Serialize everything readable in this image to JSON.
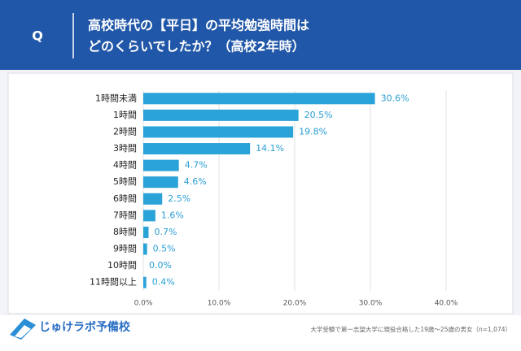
{
  "header": {
    "label": "Q",
    "title_lines": [
      "高校時代の【平日】の平均勉強時間は",
      "どのくらいでしたか？（高校2年時）"
    ]
  },
  "chart_data": {
    "type": "bar",
    "orientation": "horizontal",
    "color": "#2aa3d9",
    "categories": [
      "1時間未満",
      "1時間",
      "2時間",
      "3時間",
      "4時間",
      "5時間",
      "6時間",
      "7時間",
      "8時間",
      "9時間",
      "10時間",
      "11時間以上"
    ],
    "values": [
      30.6,
      20.5,
      19.8,
      14.1,
      4.7,
      4.6,
      2.5,
      1.6,
      0.7,
      0.5,
      0.0,
      0.4
    ],
    "value_labels": [
      "30.6%",
      "20.5%",
      "19.8%",
      "14.1%",
      "4.7%",
      "4.6%",
      "2.5%",
      "1.6%",
      "0.7%",
      "0.5%",
      "0.0%",
      "0.4%"
    ],
    "xlim": [
      0,
      40
    ],
    "xticks": [
      {
        "value": 0,
        "label": "0.0%"
      },
      {
        "value": 10,
        "label": "10.0%"
      },
      {
        "value": 20,
        "label": "20.0%"
      },
      {
        "value": 30,
        "label": "30.0%"
      },
      {
        "value": 40,
        "label": "40.0%"
      }
    ],
    "grid": true
  },
  "footer": {
    "logo": "じゅけラボ予備校",
    "note": "大学受験で第一志望大学に現役合格した19歳～25歳の男女（n=1,074）"
  }
}
